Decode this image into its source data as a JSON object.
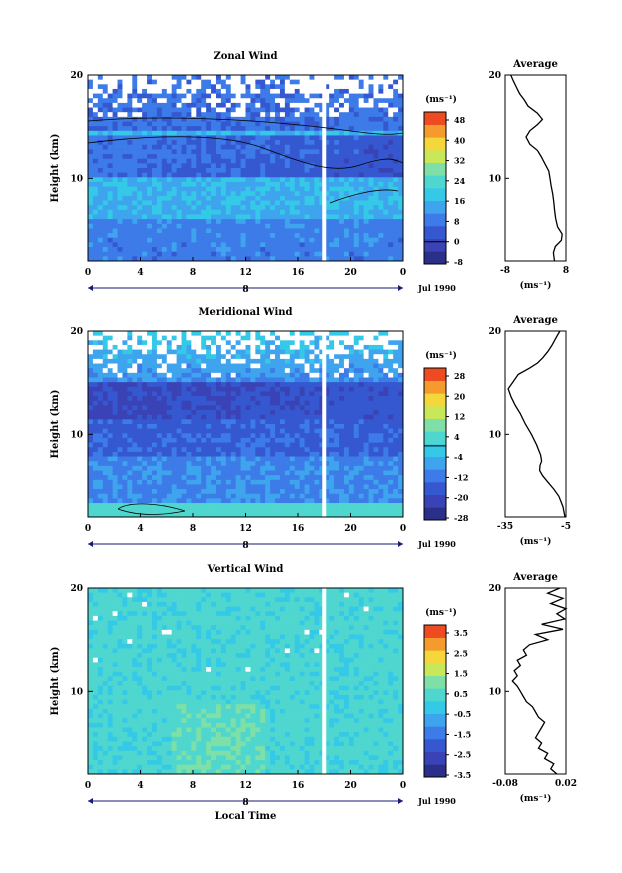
{
  "chart_data": [
    {
      "type": "heatmap",
      "title": "Zonal Wind",
      "xlabel": "",
      "ylabel": "Height (km)",
      "x_ticks": [
        "0",
        "4",
        "8",
        "12",
        "16",
        "20",
        "0"
      ],
      "date_label": "8",
      "date_footer": "Jul 1990",
      "y_ticks": [
        "20",
        "10"
      ],
      "ylim": [
        2,
        20
      ],
      "colorbar": {
        "unit": "(ms⁻¹)",
        "ticks": [
          "48",
          "40",
          "32",
          "24",
          "16",
          "8",
          "0",
          "-8"
        ],
        "contour_level": "0"
      },
      "gap_hour": 18,
      "profile": {
        "title": "Average",
        "xlabel": "(ms⁻¹)",
        "x_ticks": [
          "-8",
          "8"
        ],
        "y_ticks": [
          "20",
          "10"
        ],
        "xlim": [
          -8,
          8
        ],
        "points": [
          [
            -6.5,
            20
          ],
          [
            -5.8,
            19.4
          ],
          [
            -5,
            18.8
          ],
          [
            -4.2,
            18.2
          ],
          [
            -3,
            17.6
          ],
          [
            -2,
            17
          ],
          [
            0.5,
            16.3
          ],
          [
            1.8,
            15.7
          ],
          [
            0.5,
            15.2
          ],
          [
            -1.5,
            14.6
          ],
          [
            -2.5,
            14
          ],
          [
            -1.5,
            13.3
          ],
          [
            0.5,
            12.7
          ],
          [
            1.5,
            12.1
          ],
          [
            2.5,
            11.4
          ],
          [
            3.5,
            10.7
          ],
          [
            3.8,
            10
          ],
          [
            4.1,
            9.3
          ],
          [
            4.5,
            8.5
          ],
          [
            4.8,
            7.7
          ],
          [
            5,
            6.9
          ],
          [
            5.3,
            6.1
          ],
          [
            5.8,
            5.3
          ],
          [
            7,
            4.6
          ],
          [
            6.8,
            4
          ],
          [
            5.2,
            3.4
          ],
          [
            4.7,
            2.8
          ],
          [
            4.9,
            2.2
          ],
          [
            5,
            2
          ]
        ]
      }
    },
    {
      "type": "heatmap",
      "title": "Meridional Wind",
      "xlabel": "",
      "ylabel": "Height (km)",
      "x_ticks": [
        "0",
        "4",
        "8",
        "12",
        "16",
        "20",
        "0"
      ],
      "date_label": "8",
      "date_footer": "Jul 1990",
      "y_ticks": [
        "20",
        "10"
      ],
      "ylim": [
        2,
        20
      ],
      "colorbar": {
        "unit": "(ms⁻¹)",
        "ticks": [
          "28",
          "20",
          "12",
          "4",
          "-4",
          "-12",
          "-20",
          "-28"
        ],
        "contour_level": "0"
      },
      "gap_hour": 18,
      "profile": {
        "title": "Average",
        "xlabel": "(ms⁻¹)",
        "x_ticks": [
          "-35",
          "-5"
        ],
        "y_ticks": [
          "20",
          "10"
        ],
        "xlim": [
          -35,
          -5
        ],
        "points": [
          [
            -8,
            20
          ],
          [
            -10,
            19.3
          ],
          [
            -12,
            18.6
          ],
          [
            -14,
            18
          ],
          [
            -16.5,
            17.4
          ],
          [
            -19,
            16.9
          ],
          [
            -23,
            16.4
          ],
          [
            -28.5,
            15.8
          ],
          [
            -33.5,
            14.4
          ],
          [
            -32,
            13.6
          ],
          [
            -30,
            12.8
          ],
          [
            -27.5,
            12
          ],
          [
            -25,
            11
          ],
          [
            -22,
            10
          ],
          [
            -19.5,
            9
          ],
          [
            -17.5,
            8
          ],
          [
            -17,
            7.4
          ],
          [
            -17.8,
            7
          ],
          [
            -18,
            6.5
          ],
          [
            -16.5,
            6
          ],
          [
            -14,
            5.4
          ],
          [
            -11,
            4.7
          ],
          [
            -8.5,
            4
          ],
          [
            -6.5,
            3
          ],
          [
            -5.5,
            2
          ]
        ]
      }
    },
    {
      "type": "heatmap",
      "title": "Vertical Wind",
      "xlabel": "Local Time",
      "ylabel": "Height (km)",
      "x_ticks": [
        "0",
        "4",
        "8",
        "12",
        "16",
        "20",
        "0"
      ],
      "date_label": "8",
      "date_footer": "Jul 1990",
      "y_ticks": [
        "20",
        "10"
      ],
      "ylim": [
        2,
        20
      ],
      "colorbar": {
        "unit": "(ms⁻¹)",
        "ticks": [
          "3.5",
          "2.5",
          "1.5",
          "0.5",
          "-0.5",
          "-1.5",
          "-2.5",
          "-3.5"
        ],
        "contour_level": ""
      },
      "gap_hour": 18,
      "profile": {
        "title": "Average",
        "xlabel": "(ms⁻¹)",
        "x_ticks": [
          "-0.08",
          "0.02"
        ],
        "y_ticks": [
          "20",
          "10"
        ],
        "xlim": [
          -0.08,
          0.02
        ],
        "points": [
          [
            0.01,
            20
          ],
          [
            -0.01,
            19.5
          ],
          [
            0.015,
            19
          ],
          [
            -0.005,
            18.5
          ],
          [
            0.02,
            18
          ],
          [
            0.005,
            17.5
          ],
          [
            0.018,
            17
          ],
          [
            -0.02,
            16.5
          ],
          [
            0.015,
            16
          ],
          [
            -0.03,
            15.5
          ],
          [
            -0.01,
            15
          ],
          [
            -0.04,
            14.5
          ],
          [
            -0.05,
            14
          ],
          [
            -0.045,
            13.5
          ],
          [
            -0.06,
            13
          ],
          [
            -0.055,
            12.5
          ],
          [
            -0.065,
            12
          ],
          [
            -0.06,
            11.5
          ],
          [
            -0.068,
            11
          ],
          [
            -0.06,
            10.5
          ],
          [
            -0.055,
            10
          ],
          [
            -0.05,
            9.5
          ],
          [
            -0.045,
            9
          ],
          [
            -0.035,
            8.5
          ],
          [
            -0.03,
            8
          ],
          [
            -0.025,
            7.5
          ],
          [
            -0.015,
            7
          ],
          [
            -0.02,
            6.5
          ],
          [
            -0.025,
            6
          ],
          [
            -0.03,
            5.5
          ],
          [
            -0.02,
            5
          ],
          [
            -0.025,
            4.5
          ],
          [
            -0.01,
            4
          ],
          [
            -0.015,
            3.5
          ],
          [
            0.0,
            3
          ],
          [
            -0.005,
            2.5
          ],
          [
            0.005,
            2
          ]
        ]
      }
    }
  ],
  "colors": {
    "scale": [
      "#2b2f8a",
      "#3a43b5",
      "#3558d0",
      "#3c7be8",
      "#3fa4ee",
      "#35c9e8",
      "#4fd7cf",
      "#7ee0a6",
      "#c8e85a",
      "#f5d63b",
      "#f59a2c",
      "#ee4b22"
    ]
  }
}
